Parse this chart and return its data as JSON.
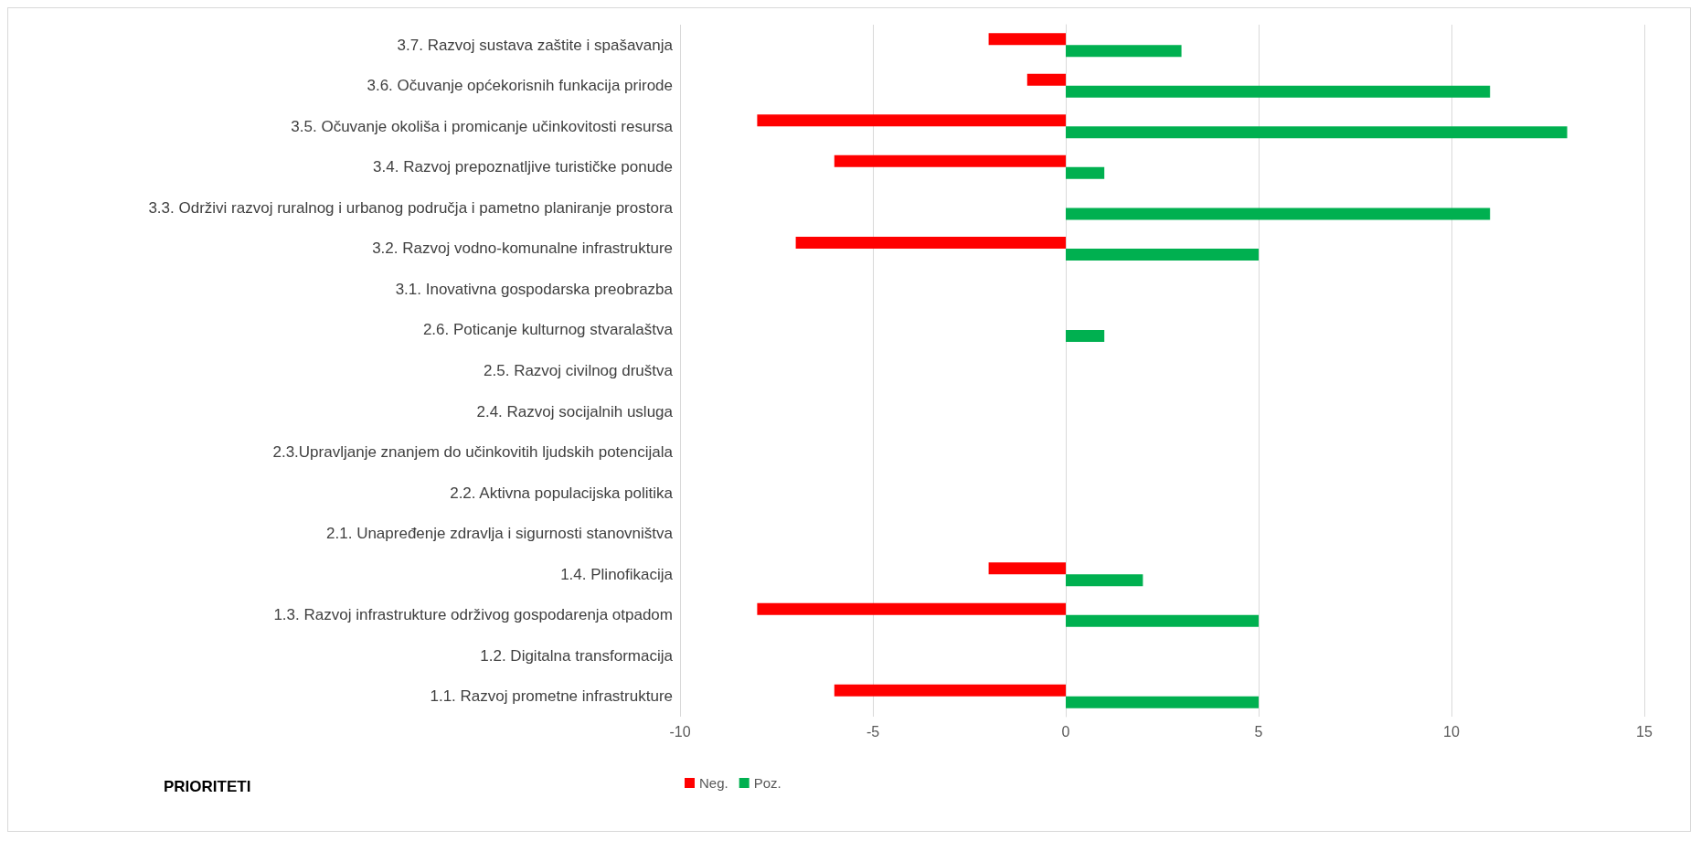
{
  "chart_data": {
    "type": "bar",
    "orientation": "horizontal",
    "ylabel": "PRIORITETI",
    "categories": [
      "3.7. Razvoj sustava zaštite i spašavanja",
      "3.6. Očuvanje općekorisnih funkacija prirode",
      "3.5. Očuvanje okoliša i promicanje učinkovitosti resursa",
      "3.4. Razvoj prepoznatljive turističke ponude",
      "3.3. Održivi razvoj ruralnog i urbanog područja i pametno planiranje prostora",
      "3.2. Razvoj vodno-komunalne infrastrukture",
      "3.1. Inovativna gospodarska preobrazba",
      "2.6. Poticanje kulturnog stvaralaštva",
      "2.5. Razvoj civilnog društva",
      "2.4. Razvoj socijalnih usluga",
      "2.3.Upravljanje znanjem do učinkovitih ljudskih potencijala",
      "2.2. Aktivna populacijska politika",
      "2.1. Unapređenje zdravlja i sigurnosti stanovništva",
      "1.4. Plinofikacija",
      "1.3. Razvoj infrastrukture održivog gospodarenja otpadom",
      "1.2. Digitalna transformacija",
      "1.1. Razvoj prometne infrastrukture"
    ],
    "series": [
      {
        "name": "Neg.",
        "color": "#ff0000",
        "values": [
          -2,
          -1,
          -8,
          -6,
          0,
          -7,
          0,
          0,
          0,
          0,
          0,
          0,
          0,
          -2,
          -8,
          0,
          -6
        ]
      },
      {
        "name": "Poz.",
        "color": "#00b050",
        "values": [
          3,
          11,
          13,
          1,
          11,
          5,
          0,
          1,
          0,
          0,
          0,
          0,
          0,
          2,
          5,
          0,
          5
        ]
      }
    ],
    "xlim": [
      -10,
      15
    ],
    "xticks": [
      -10,
      -5,
      0,
      5,
      10,
      15
    ],
    "grid": "x",
    "legend": "bottom"
  }
}
